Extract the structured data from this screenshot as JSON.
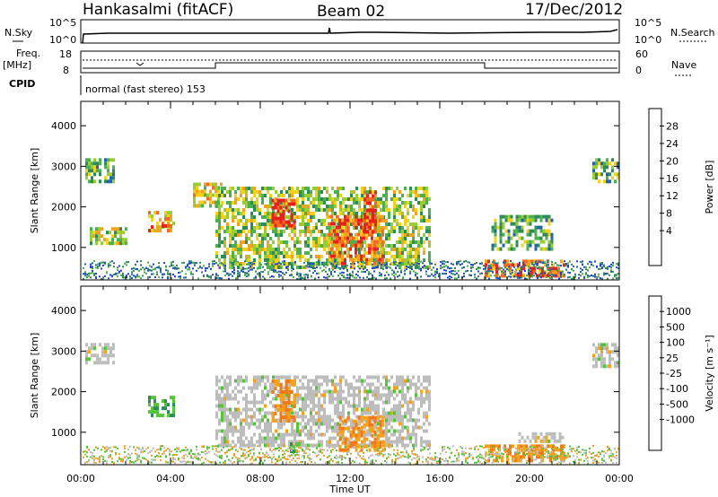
{
  "header": {
    "station": "Hankasalmi (fitACF)",
    "beam": "Beam 02",
    "date": "17/Dec/2012"
  },
  "strip_labels": {
    "nsky": "N.Sky",
    "nsearch": "N.Search",
    "freq_top": "Freq.",
    "freq_unit": "[MHz]",
    "nave": "Nave",
    "cpid": "CPID",
    "cpid_text": "normal (fast stereo) 153",
    "noise_left_ticks": [
      "10^5",
      "10^0"
    ],
    "noise_right_ticks": [
      "10^5",
      "10^0"
    ],
    "freq_left_ticks": [
      "18",
      "8"
    ],
    "freq_right_ticks": [
      "60",
      "0"
    ]
  },
  "axes": {
    "ylabel": "Slant Range [km]",
    "xlabel": "Time UT",
    "y_ticks": [
      "4000",
      "3000",
      "2000",
      "1000"
    ],
    "x_ticks": [
      "00:00",
      "04:00",
      "08:00",
      "12:00",
      "16:00",
      "20:00",
      "00:00"
    ]
  },
  "colorbars": {
    "power": {
      "label": "Power [dB]",
      "ticks": [
        "28",
        "24",
        "20",
        "16",
        "12",
        "8",
        "4"
      ],
      "colors": [
        "#e8201c",
        "#f26a1f",
        "#f4a21d",
        "#f2d11c",
        "#9acd32",
        "#4caf50",
        "#2e8b57",
        "#2563a8",
        "#1f3fd6"
      ]
    },
    "velocity": {
      "label": "Velocity [m s⁻¹]",
      "ticks": [
        "1000",
        "500",
        "100",
        "25",
        "-25",
        "-100",
        "-500",
        "-1000"
      ],
      "colors": [
        "#2f55c8",
        "#2f7fb5",
        "#2e8b57",
        "#55c43b",
        "#bdbdbd",
        "#bdbdbd",
        "#f4a21d",
        "#f07a18",
        "#e84a1a",
        "#e01d1d"
      ]
    }
  },
  "chart_data": {
    "type": "heatmap",
    "x_range_hours": [
      0,
      24
    ],
    "y_range_km": [
      200,
      4600
    ],
    "panels": [
      {
        "name": "power",
        "echo_regions": [
          {
            "t0": 0.2,
            "t1": 1.5,
            "r0": 2600,
            "r1": 3200,
            "level": 3
          },
          {
            "t0": 0.4,
            "t1": 2.0,
            "r0": 1100,
            "r1": 1500,
            "level": 4
          },
          {
            "t0": 3.0,
            "t1": 4.2,
            "r0": 1400,
            "r1": 1900,
            "level": 6
          },
          {
            "t0": 3.6,
            "t1": 4.0,
            "r0": 1550,
            "r1": 1750,
            "level": 8
          },
          {
            "t0": 5.0,
            "t1": 6.3,
            "r0": 2000,
            "r1": 2600,
            "level": 5
          },
          {
            "t0": 6.0,
            "t1": 15.5,
            "r0": 500,
            "r1": 2500,
            "level": 4
          },
          {
            "t0": 8.5,
            "t1": 9.5,
            "r0": 1500,
            "r1": 2200,
            "level": 8
          },
          {
            "t0": 11.0,
            "t1": 13.5,
            "r0": 600,
            "r1": 1800,
            "level": 7
          },
          {
            "t0": 12.6,
            "t1": 13.2,
            "r0": 1400,
            "r1": 2400,
            "level": 8
          },
          {
            "t0": 18.0,
            "t1": 21.5,
            "r0": 300,
            "r1": 700,
            "level": 7
          },
          {
            "t0": 18.3,
            "t1": 21.0,
            "r0": 1000,
            "r1": 1800,
            "level": 3
          },
          {
            "t0": 22.8,
            "t1": 24.0,
            "r0": 2600,
            "r1": 3200,
            "level": 3
          }
        ]
      },
      {
        "name": "velocity",
        "echo_regions": [
          {
            "t0": 0.2,
            "t1": 1.5,
            "r0": 2700,
            "r1": 3200,
            "vel": 0
          },
          {
            "t0": 3.0,
            "t1": 4.2,
            "r0": 1400,
            "r1": 1900,
            "vel": 100
          },
          {
            "t0": 6.0,
            "t1": 15.5,
            "r0": 700,
            "r1": 2400,
            "vel": 0
          },
          {
            "t0": 8.5,
            "t1": 9.5,
            "r0": 1300,
            "r1": 2300,
            "vel": -100
          },
          {
            "t0": 11.5,
            "t1": 13.5,
            "r0": 600,
            "r1": 1400,
            "vel": -100
          },
          {
            "t0": 9.2,
            "t1": 9.8,
            "r0": 500,
            "r1": 750,
            "vel": 100
          },
          {
            "t0": 18.0,
            "t1": 21.5,
            "r0": 300,
            "r1": 700,
            "vel": -100
          },
          {
            "t0": 19.5,
            "t1": 21.5,
            "r0": 800,
            "r1": 1000,
            "vel": 0
          },
          {
            "t0": 22.8,
            "t1": 24.0,
            "r0": 2600,
            "r1": 3200,
            "vel": 0
          }
        ]
      }
    ]
  }
}
